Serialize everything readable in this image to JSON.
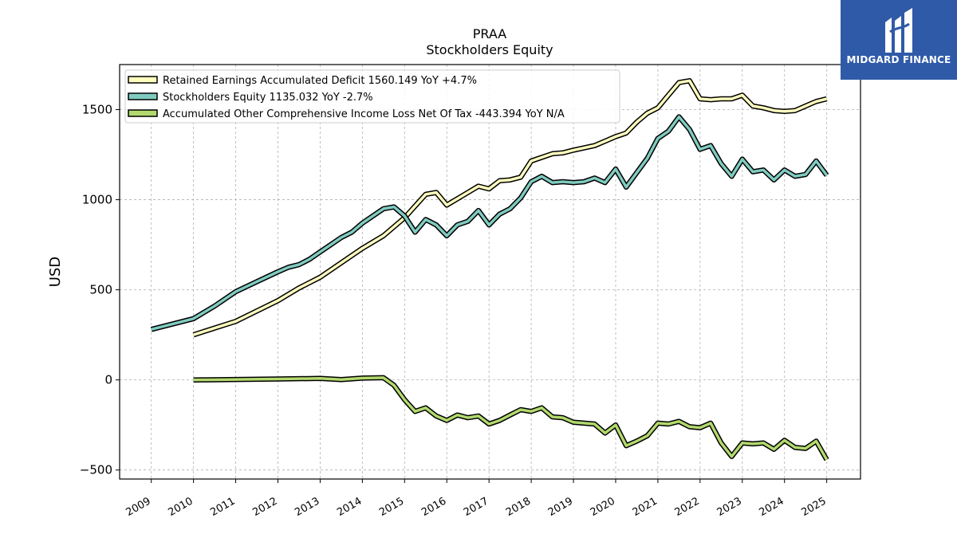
{
  "chart_data": {
    "type": "line",
    "title": "PRAA",
    "subtitle": "Stockholders  Equity",
    "ylabel": "USD",
    "xlabel": "",
    "ylim": [
      -550,
      1750
    ],
    "xlim": [
      2008.25,
      2025.8
    ],
    "yticks": [
      -500,
      0,
      500,
      1000,
      1500
    ],
    "ytick_labels": [
      "−500",
      "0",
      "500",
      "1000",
      "1500"
    ],
    "xticks": [
      2009,
      2010,
      2011,
      2012,
      2013,
      2014,
      2015,
      2016,
      2017,
      2018,
      2019,
      2020,
      2021,
      2022,
      2023,
      2024,
      2025
    ],
    "xtick_labels": [
      "2009",
      "2010",
      "2011",
      "2012",
      "2013",
      "2014",
      "2015",
      "2016",
      "2017",
      "2018",
      "2019",
      "2020",
      "2021",
      "2022",
      "2023",
      "2024",
      "2025"
    ],
    "grid": true,
    "legend_position": "top-left",
    "series": [
      {
        "name": "Retained Earnings Accumulated Deficit",
        "legend_label": "Retained Earnings Accumulated Deficit  1560.149 YoY +4.7%",
        "color": "#ffffbf",
        "x": [
          2010.0,
          2011.0,
          2012.0,
          2012.5,
          2013.0,
          2013.5,
          2014.0,
          2014.5,
          2015.0,
          2015.5,
          2015.75,
          2016.0,
          2016.5,
          2016.75,
          2017.0,
          2017.25,
          2017.5,
          2017.75,
          2018.0,
          2018.5,
          2018.75,
          2019.0,
          2019.5,
          2019.75,
          2020.0,
          2020.25,
          2020.5,
          2020.75,
          2021.0,
          2021.25,
          2021.5,
          2021.75,
          2022.0,
          2022.25,
          2022.5,
          2022.75,
          2023.0,
          2023.25,
          2023.5,
          2023.75,
          2024.0,
          2024.25,
          2024.5,
          2024.75,
          2025.0
        ],
        "y": [
          250,
          325,
          440,
          510,
          570,
          650,
          730,
          800,
          900,
          1030,
          1040,
          970,
          1040,
          1075,
          1060,
          1105,
          1110,
          1125,
          1215,
          1255,
          1260,
          1275,
          1300,
          1325,
          1350,
          1370,
          1430,
          1480,
          1510,
          1580,
          1650,
          1660,
          1560,
          1555,
          1560,
          1560,
          1580,
          1520,
          1510,
          1495,
          1490,
          1495,
          1520,
          1545,
          1560
        ]
      },
      {
        "name": "Stockholders Equity",
        "legend_label": "Stockholders Equity  1135.032 YoY -2.7%",
        "color": "#80cbc0",
        "x": [
          2009.0,
          2010.0,
          2010.5,
          2011.0,
          2011.5,
          2012.0,
          2012.25,
          2012.5,
          2012.75,
          2013.0,
          2013.25,
          2013.5,
          2013.75,
          2014.0,
          2014.25,
          2014.5,
          2014.75,
          2015.0,
          2015.25,
          2015.5,
          2015.75,
          2016.0,
          2016.25,
          2016.5,
          2016.75,
          2017.0,
          2017.25,
          2017.5,
          2017.75,
          2018.0,
          2018.25,
          2018.5,
          2018.75,
          2019.0,
          2019.25,
          2019.5,
          2019.75,
          2020.0,
          2020.25,
          2020.5,
          2020.75,
          2021.0,
          2021.25,
          2021.5,
          2021.75,
          2022.0,
          2022.25,
          2022.5,
          2022.75,
          2023.0,
          2023.25,
          2023.5,
          2023.75,
          2024.0,
          2024.25,
          2024.5,
          2024.75,
          2025.0
        ],
        "y": [
          280,
          340,
          410,
          490,
          545,
          600,
          625,
          640,
          670,
          710,
          750,
          790,
          820,
          870,
          910,
          950,
          960,
          910,
          820,
          890,
          860,
          800,
          860,
          880,
          940,
          860,
          920,
          950,
          1010,
          1100,
          1130,
          1095,
          1100,
          1095,
          1100,
          1120,
          1095,
          1170,
          1070,
          1150,
          1230,
          1340,
          1380,
          1460,
          1390,
          1280,
          1300,
          1200,
          1130,
          1225,
          1155,
          1165,
          1110,
          1165,
          1130,
          1140,
          1215,
          1135
        ]
      },
      {
        "name": "Accumulated Other Comprehensive Income Loss Net Of Tax",
        "legend_label": "Accumulated Other Comprehensive Income Loss Net Of Tax  -443.394 YoY N/A",
        "color": "#b2d96e",
        "x": [
          2010.0,
          2012.0,
          2013.0,
          2013.5,
          2014.0,
          2014.5,
          2014.75,
          2015.0,
          2015.25,
          2015.5,
          2015.75,
          2016.0,
          2016.25,
          2016.5,
          2016.75,
          2017.0,
          2017.25,
          2017.5,
          2017.75,
          2018.0,
          2018.25,
          2018.5,
          2018.75,
          2019.0,
          2019.25,
          2019.5,
          2019.75,
          2020.0,
          2020.25,
          2020.5,
          2020.75,
          2021.0,
          2021.25,
          2021.5,
          2021.75,
          2022.0,
          2022.25,
          2022.5,
          2022.75,
          2023.0,
          2023.25,
          2023.5,
          2023.75,
          2024.0,
          2024.25,
          2024.5,
          2024.75,
          2025.0
        ],
        "y": [
          0,
          5,
          8,
          2,
          10,
          12,
          -30,
          -110,
          -175,
          -155,
          -200,
          -225,
          -195,
          -210,
          -200,
          -245,
          -225,
          -195,
          -165,
          -175,
          -155,
          -205,
          -210,
          -235,
          -240,
          -245,
          -295,
          -250,
          -365,
          -340,
          -310,
          -240,
          -245,
          -230,
          -260,
          -265,
          -240,
          -350,
          -425,
          -350,
          -355,
          -350,
          -385,
          -335,
          -375,
          -380,
          -340,
          -443
        ]
      }
    ]
  },
  "logo": {
    "text": "MIDGARD FINANCE",
    "background_color": "#2f5aa8",
    "text_color": "#ffffff"
  }
}
